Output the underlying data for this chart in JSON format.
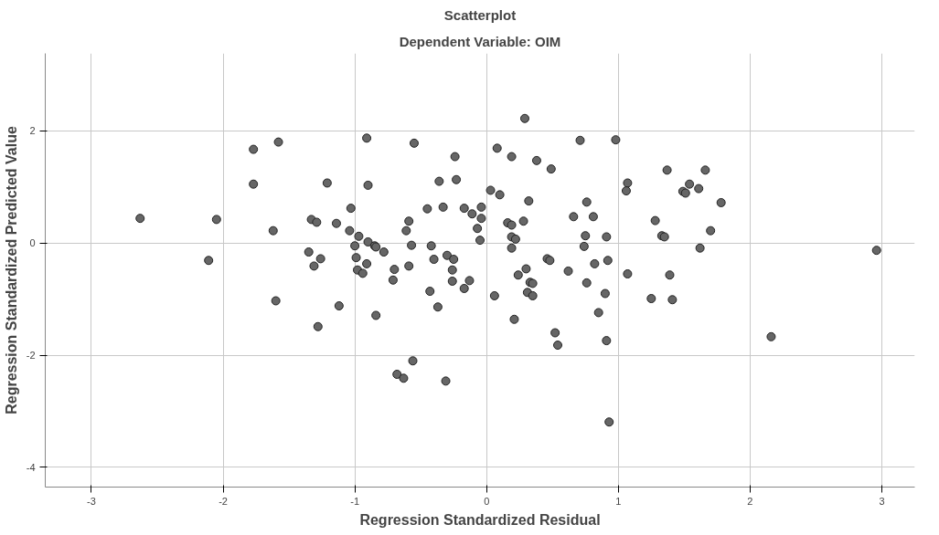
{
  "chart_data": {
    "type": "scatter",
    "title": "Scatterplot",
    "subtitle": "Dependent Variable: OIM",
    "xlabel": "Regression Standardized Residual",
    "ylabel": "Regression Standardized Predicted Value",
    "xlim": [
      -3.35,
      3.25
    ],
    "ylim": [
      -4.35,
      3.38
    ],
    "xticks": [
      -3,
      -2,
      -1,
      0,
      1,
      2,
      3
    ],
    "yticks": [
      -4,
      -2,
      0,
      2
    ],
    "grid": true,
    "marker": "circle",
    "series": [
      {
        "color": "#666666",
        "x": [
          -2.63,
          -2.05,
          -2.11,
          -1.77,
          -1.58,
          -1.77,
          -1.21,
          -1.62,
          -1.33,
          -1.29,
          -1.14,
          -1.35,
          -1.26,
          -1.31,
          -1.6,
          -1.12,
          -1.28,
          0.29,
          -0.91,
          -0.55,
          -0.24,
          -0.9,
          -0.36,
          -0.23,
          0.08,
          0.19,
          0.38,
          0.49,
          0.71,
          0.98,
          1.07,
          1.06,
          0.03,
          0.1,
          0.32,
          0.76,
          -1.03,
          -0.45,
          -0.33,
          -0.17,
          -0.04,
          -0.11,
          -0.04,
          -0.07,
          -0.05,
          -0.59,
          -0.61,
          -1.04,
          -0.97,
          -0.9,
          -0.85,
          -0.84,
          -1.0,
          -0.78,
          -0.57,
          -0.42,
          -0.99,
          -0.91,
          -0.98,
          -0.94,
          -0.7,
          -0.71,
          -0.59,
          -0.4,
          -0.3,
          -0.25,
          -0.26,
          -0.26,
          -0.13,
          -0.17,
          -0.43,
          -0.37,
          -0.84,
          -0.56,
          -0.68,
          -0.63,
          -0.31,
          0.16,
          0.19,
          0.28,
          0.66,
          0.81,
          0.75,
          0.91,
          0.19,
          0.22,
          0.19,
          0.74,
          0.46,
          0.48,
          0.3,
          0.92,
          0.82,
          0.62,
          1.07,
          0.24,
          0.33,
          0.35,
          0.31,
          0.35,
          0.06,
          0.76,
          0.9,
          0.85,
          0.21,
          0.52,
          0.54,
          0.91,
          0.93,
          1.37,
          1.66,
          1.54,
          1.49,
          1.51,
          1.61,
          1.78,
          1.28,
          1.7,
          1.33,
          1.35,
          1.62,
          1.39,
          1.25,
          1.41,
          2.16,
          2.96
        ],
        "values": [
          0.44,
          0.42,
          -0.31,
          1.67,
          1.8,
          1.05,
          1.07,
          0.22,
          0.42,
          0.37,
          0.35,
          -0.16,
          -0.28,
          -0.41,
          -1.03,
          -1.12,
          -1.49,
          2.22,
          1.87,
          1.78,
          1.54,
          1.03,
          1.1,
          1.13,
          1.69,
          1.54,
          1.47,
          1.32,
          1.83,
          1.84,
          1.07,
          0.93,
          0.94,
          0.86,
          0.75,
          0.73,
          0.62,
          0.61,
          0.64,
          0.62,
          0.64,
          0.52,
          0.44,
          0.26,
          0.05,
          0.39,
          0.22,
          0.22,
          0.12,
          0.02,
          -0.05,
          -0.07,
          -0.05,
          -0.16,
          -0.04,
          -0.05,
          -0.26,
          -0.37,
          -0.48,
          -0.54,
          -0.47,
          -0.66,
          -0.41,
          -0.29,
          -0.22,
          -0.29,
          -0.48,
          -0.68,
          -0.67,
          -0.81,
          -0.86,
          -1.14,
          -1.29,
          -2.1,
          -2.34,
          -2.41,
          -2.46,
          0.36,
          0.32,
          0.39,
          0.47,
          0.47,
          0.13,
          0.11,
          0.11,
          0.07,
          -0.09,
          -0.06,
          -0.28,
          -0.31,
          -0.46,
          -0.31,
          -0.37,
          -0.5,
          -0.55,
          -0.57,
          -0.7,
          -0.72,
          -0.88,
          -0.94,
          -0.94,
          -0.71,
          -0.9,
          -1.24,
          -1.36,
          -1.6,
          -1.82,
          -1.74,
          -3.19,
          1.3,
          1.3,
          1.05,
          0.92,
          0.89,
          0.97,
          0.72,
          0.4,
          0.22,
          0.13,
          0.11,
          -0.09,
          -0.57,
          -0.99,
          -1.01,
          -1.67,
          -0.13
        ]
      }
    ]
  }
}
